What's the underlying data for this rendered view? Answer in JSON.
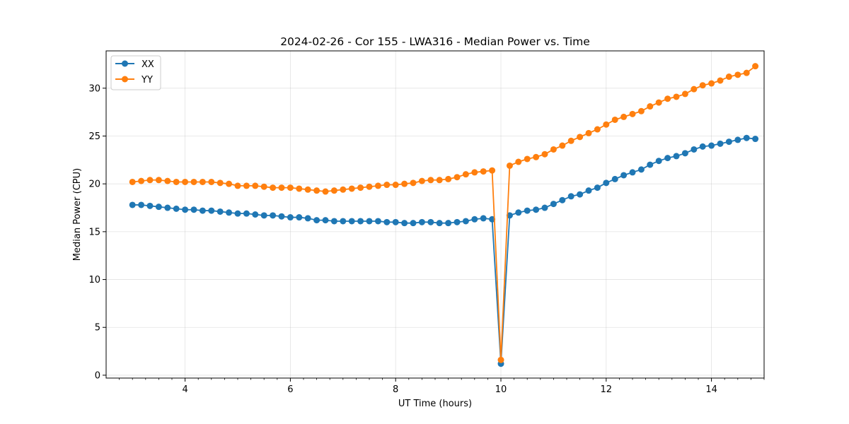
{
  "chart_data": {
    "type": "line",
    "title": "2024-02-26 - Cor 155 - LWA316 - Median Power vs. Time",
    "xlabel": "UT Time (hours)",
    "ylabel": "Median Power (CPU)",
    "xlim": [
      2.5,
      15.0
    ],
    "ylim": [
      -0.3,
      33.9
    ],
    "xticks": [
      4,
      6,
      8,
      10,
      12,
      14
    ],
    "yticks": [
      0,
      5,
      10,
      15,
      20,
      25,
      30
    ],
    "xtick_labels": [
      "4",
      "6",
      "8",
      "10",
      "12",
      "14"
    ],
    "ytick_labels": [
      "0",
      "5",
      "10",
      "15",
      "20",
      "25",
      "30"
    ],
    "grid": true,
    "legend_position": "upper-left",
    "x": [
      3.0,
      3.167,
      3.333,
      3.5,
      3.667,
      3.833,
      4.0,
      4.167,
      4.333,
      4.5,
      4.667,
      4.833,
      5.0,
      5.167,
      5.333,
      5.5,
      5.667,
      5.833,
      6.0,
      6.167,
      6.333,
      6.5,
      6.667,
      6.833,
      7.0,
      7.167,
      7.333,
      7.5,
      7.667,
      7.833,
      8.0,
      8.167,
      8.333,
      8.5,
      8.667,
      8.833,
      9.0,
      9.167,
      9.333,
      9.5,
      9.667,
      9.833,
      10.0,
      10.167,
      10.333,
      10.5,
      10.667,
      10.833,
      11.0,
      11.167,
      11.333,
      11.5,
      11.667,
      11.833,
      12.0,
      12.167,
      12.333,
      12.5,
      12.667,
      12.833,
      13.0,
      13.167,
      13.333,
      13.5,
      13.667,
      13.833,
      14.0,
      14.167,
      14.333,
      14.5,
      14.667,
      14.833
    ],
    "series": [
      {
        "name": "XX",
        "color": "#1f77b4",
        "values": [
          17.8,
          17.8,
          17.7,
          17.6,
          17.5,
          17.4,
          17.3,
          17.3,
          17.2,
          17.2,
          17.1,
          17.0,
          16.9,
          16.9,
          16.8,
          16.7,
          16.7,
          16.6,
          16.5,
          16.5,
          16.4,
          16.2,
          16.2,
          16.1,
          16.1,
          16.1,
          16.1,
          16.1,
          16.1,
          16.0,
          16.0,
          15.9,
          15.9,
          16.0,
          16.0,
          15.9,
          15.9,
          16.0,
          16.1,
          16.3,
          16.4,
          16.3,
          1.2,
          16.7,
          17.0,
          17.2,
          17.3,
          17.5,
          17.9,
          18.3,
          18.7,
          18.9,
          19.3,
          19.6,
          20.1,
          20.5,
          20.9,
          21.2,
          21.5,
          22.0,
          22.4,
          22.7,
          22.9,
          23.2,
          23.6,
          23.9,
          24.0,
          24.2,
          24.4,
          24.6,
          24.8,
          24.7
        ]
      },
      {
        "name": "YY",
        "color": "#ff7f0e",
        "values": [
          20.2,
          20.3,
          20.4,
          20.4,
          20.3,
          20.2,
          20.2,
          20.2,
          20.2,
          20.2,
          20.1,
          20.0,
          19.8,
          19.8,
          19.8,
          19.7,
          19.6,
          19.6,
          19.6,
          19.5,
          19.4,
          19.3,
          19.2,
          19.3,
          19.4,
          19.5,
          19.6,
          19.7,
          19.8,
          19.9,
          19.9,
          20.0,
          20.1,
          20.3,
          20.4,
          20.4,
          20.5,
          20.7,
          21.0,
          21.2,
          21.3,
          21.4,
          1.6,
          21.9,
          22.3,
          22.6,
          22.8,
          23.1,
          23.6,
          24.0,
          24.5,
          24.9,
          25.3,
          25.7,
          26.2,
          26.7,
          27.0,
          27.3,
          27.6,
          28.1,
          28.5,
          28.9,
          29.1,
          29.4,
          29.9,
          30.3,
          30.5,
          30.8,
          31.2,
          31.4,
          31.6,
          32.3
        ]
      }
    ]
  }
}
